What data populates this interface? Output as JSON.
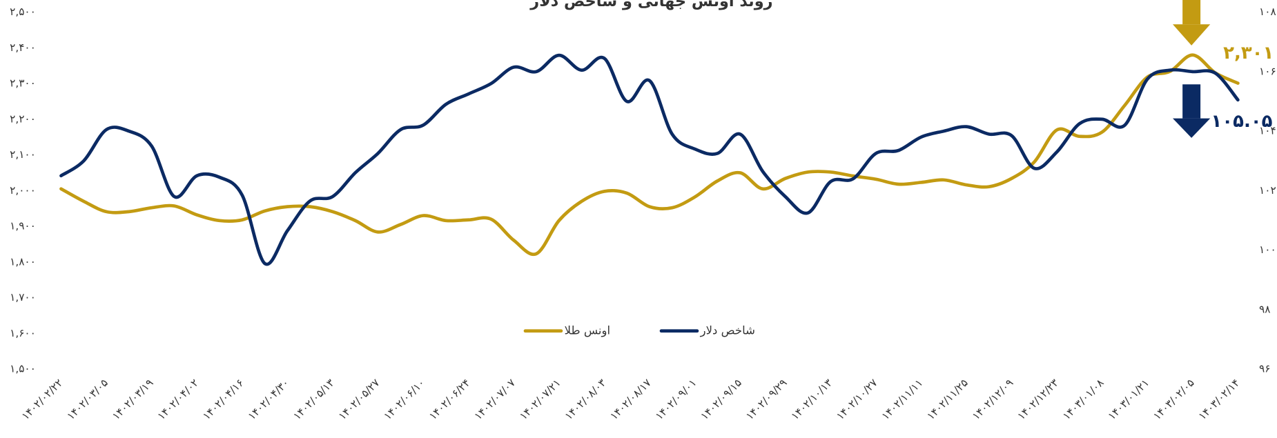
{
  "chart_data": {
    "type": "line",
    "title": "روند اونس جهانی و شاخص دلار",
    "categories": [
      "۱۴۰۲/۰۲/۲۲",
      null,
      "۱۴۰۲/۰۳/۰۵",
      null,
      "۱۴۰۲/۰۳/۱۹",
      null,
      "۱۴۰۲/۰۴/۰۲",
      null,
      "۱۴۰۲/۰۴/۱۶",
      null,
      "۱۴۰۲/۰۴/۳۰",
      null,
      "۱۴۰۲/۰۵/۱۳",
      null,
      "۱۴۰۲/۰۵/۲۷",
      null,
      "۱۴۰۲/۰۶/۱۰",
      null,
      "۱۴۰۲/۰۶/۲۴",
      null,
      "۱۴۰۲/۰۷/۰۷",
      null,
      "۱۴۰۲/۰۷/۲۱",
      null,
      "۱۴۰۲/۰۸/۰۳",
      null,
      "۱۴۰۲/۰۸/۱۷",
      null,
      "۱۴۰۲/۰۹/۰۱",
      null,
      "۱۴۰۲/۰۹/۱۵",
      null,
      "۱۴۰۲/۰۹/۲۹",
      null,
      "۱۴۰۲/۱۰/۱۳",
      null,
      "۱۴۰۲/۱۰/۲۷",
      null,
      "۱۴۰۲/۱۱/۱۱",
      null,
      "۱۴۰۲/۱۱/۲۵",
      null,
      "۱۴۰۲/۱۲/۰۹",
      null,
      "۱۴۰۲/۱۲/۲۳",
      null,
      "۱۴۰۳/۰۱/۰۸",
      null,
      "۱۴۰۳/۰۱/۲۱",
      null,
      "۱۴۰۳/۰۲/۰۵",
      null,
      "۱۴۰۳/۰۲/۱۴"
    ],
    "series": [
      {
        "name": "اونس طلا",
        "color": "#C39B12",
        "axis": "y",
        "values": [
          2005,
          1970,
          1941,
          1941,
          1952,
          1957,
          1932,
          1916,
          1918,
          1943,
          1955,
          1955,
          1941,
          1916,
          1884,
          1905,
          1930,
          1916,
          1918,
          1920,
          1861,
          1823,
          1916,
          1970,
          1998,
          1993,
          1955,
          1952,
          1982,
          2027,
          2050,
          2005,
          2034,
          2052,
          2052,
          2041,
          2032,
          2018,
          2023,
          2030,
          2016,
          2011,
          2034,
          2080,
          2170,
          2152,
          2164,
          2239,
          2318,
          2334,
          2380,
          2330,
          2301
        ],
        "value_labels": [
          null,
          null,
          null,
          null,
          null,
          null,
          null,
          null,
          null,
          null,
          null,
          null,
          null,
          null,
          null,
          null,
          null,
          null,
          null,
          null,
          null,
          null,
          null,
          null,
          null,
          null,
          null,
          null,
          null,
          null,
          null,
          null,
          null,
          null,
          null,
          null,
          null,
          null,
          null,
          null,
          null,
          null,
          null,
          null,
          null,
          null,
          null,
          null,
          null,
          null,
          null,
          null,
          "۲,۳۰۱"
        ]
      },
      {
        "name": "شاخص دلار",
        "color": "#0B2A63",
        "axis": "y2",
        "values": [
          102.5,
          103.0,
          104.05,
          104.0,
          103.5,
          101.8,
          102.5,
          102.45,
          101.85,
          99.55,
          100.65,
          101.65,
          101.8,
          102.6,
          103.25,
          104.05,
          104.2,
          104.9,
          105.25,
          105.6,
          106.15,
          106.0,
          106.55,
          106.05,
          106.45,
          105.0,
          105.7,
          103.9,
          103.4,
          103.25,
          103.9,
          102.65,
          101.8,
          101.25,
          102.3,
          102.4,
          103.25,
          103.35,
          103.8,
          104.0,
          104.15,
          103.9,
          103.85,
          102.75,
          103.3,
          104.25,
          104.4,
          104.2,
          105.75,
          106.05,
          106.0,
          105.95,
          105.05
        ],
        "value_labels": [
          null,
          null,
          null,
          null,
          null,
          null,
          null,
          null,
          null,
          null,
          null,
          null,
          null,
          null,
          null,
          null,
          null,
          null,
          null,
          null,
          null,
          null,
          null,
          null,
          null,
          null,
          null,
          null,
          null,
          null,
          null,
          null,
          null,
          null,
          null,
          null,
          null,
          null,
          null,
          null,
          null,
          null,
          null,
          null,
          null,
          null,
          null,
          null,
          null,
          null,
          null,
          null,
          "۱۰۵.۰۵"
        ]
      }
    ],
    "ylim": [
      1500,
      2500
    ],
    "yticks": [
      {
        "value": 1500,
        "label": "۱,۵۰۰"
      },
      {
        "value": 1600,
        "label": "۱,۶۰۰"
      },
      {
        "value": 1700,
        "label": "۱,۷۰۰"
      },
      {
        "value": 1800,
        "label": "۱,۸۰۰"
      },
      {
        "value": 1900,
        "label": "۱,۹۰۰"
      },
      {
        "value": 2000,
        "label": "۲,۰۰۰"
      },
      {
        "value": 2100,
        "label": "۲,۱۰۰"
      },
      {
        "value": 2200,
        "label": "۲,۲۰۰"
      },
      {
        "value": 2300,
        "label": "۲,۳۰۰"
      },
      {
        "value": 2400,
        "label": "۲,۴۰۰"
      },
      {
        "value": 2500,
        "label": "۲,۵۰۰"
      }
    ],
    "y2lim": [
      96,
      108
    ],
    "y2ticks": [
      {
        "value": 96,
        "label": "۹۶"
      },
      {
        "value": 98,
        "label": "۹۸"
      },
      {
        "value": 100,
        "label": "۱۰۰"
      },
      {
        "value": 102,
        "label": "۱۰۲"
      },
      {
        "value": 104,
        "label": "۱۰۴"
      },
      {
        "value": 106,
        "label": "۱۰۶"
      },
      {
        "value": 108,
        "label": "۱۰۸"
      }
    ],
    "grid": false
  }
}
